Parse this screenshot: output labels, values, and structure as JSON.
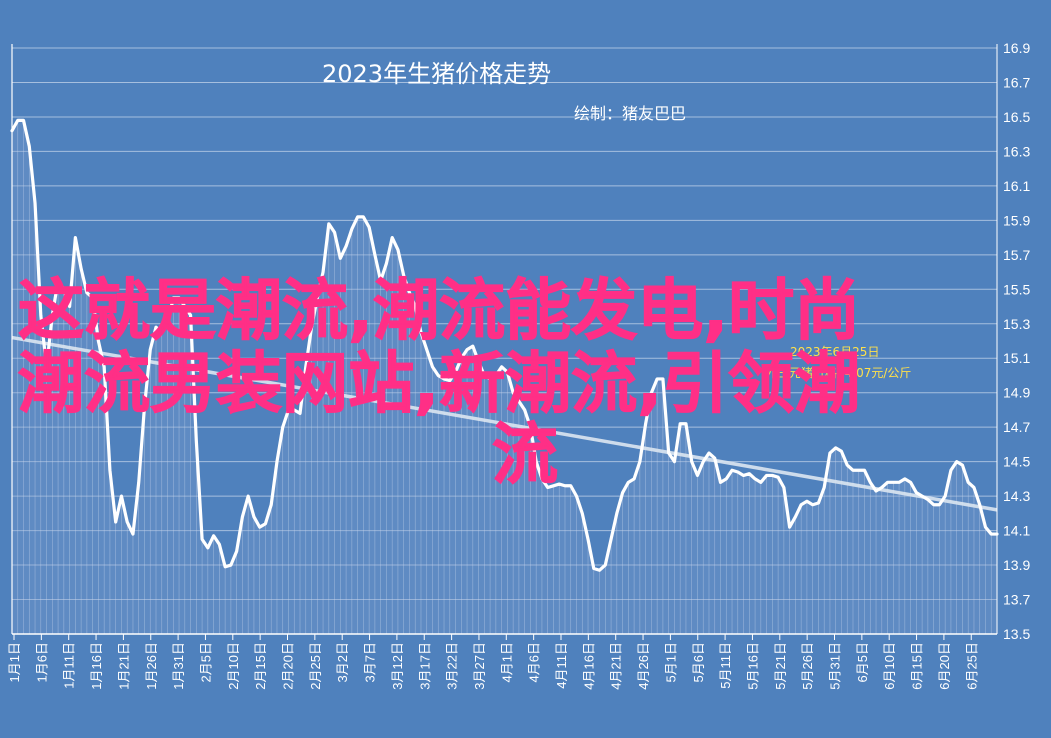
{
  "chart_data": {
    "type": "line",
    "title": "2023年生猪价格走势",
    "subtitle": "绘制：猪友巴巴",
    "ylim": [
      13.5,
      16.9
    ],
    "yticks": [
      "13.5",
      "13.7",
      "13.9",
      "14.1",
      "14.3",
      "14.5",
      "14.7",
      "14.9",
      "15.1",
      "15.3",
      "15.5",
      "15.7",
      "15.9",
      "16.1",
      "16.3",
      "16.5",
      "16.7",
      "16.9"
    ],
    "xticks": [
      "1月1日",
      "1月6日",
      "1月11日",
      "1月16日",
      "1月21日",
      "1月26日",
      "1月31日",
      "2月5日",
      "2月10日",
      "2月15日",
      "2月20日",
      "2月25日",
      "3月2日",
      "3月7日",
      "3月12日",
      "3月17日",
      "3月22日",
      "3月27日",
      "4月1日",
      "4月6日",
      "4月11日",
      "4月16日",
      "4月21日",
      "4月26日",
      "5月1日",
      "5月6日",
      "5月11日",
      "5月16日",
      "5月21日",
      "5月26日",
      "5月31日",
      "6月5日",
      "6月10日",
      "6月15日",
      "6月20日",
      "6月25日"
    ],
    "grid": true,
    "trendline": {
      "start": 15.22,
      "end": 14.22
    },
    "series": [
      {
        "values": [
          16.42,
          16.48,
          16.48,
          16.33,
          16.0,
          15.35,
          15.05,
          15.35,
          15.55,
          15.5,
          15.4,
          15.8,
          15.62,
          15.48,
          15.45,
          15.2,
          15.05,
          14.45,
          14.15,
          14.3,
          14.15,
          14.08,
          14.38,
          14.82,
          15.15,
          15.28,
          15.25,
          15.3,
          15.45,
          15.45,
          15.4,
          15.35,
          14.62,
          14.05,
          14.0,
          14.07,
          14.02,
          13.89,
          13.9,
          13.98,
          14.18,
          14.3,
          14.18,
          14.12,
          14.14,
          14.25,
          14.5,
          14.7,
          14.8,
          14.8,
          14.78,
          15.05,
          15.28,
          15.45,
          15.6,
          15.88,
          15.83,
          15.68,
          15.75,
          15.85,
          15.92,
          15.92,
          15.86,
          15.7,
          15.55,
          15.65,
          15.8,
          15.73,
          15.58,
          15.48,
          15.4,
          15.25,
          15.15,
          15.05,
          15.0,
          14.98,
          14.97,
          15.02,
          15.1,
          15.15,
          15.17,
          15.08,
          15.0,
          14.98,
          15.0,
          15.05,
          15.02,
          14.9,
          14.85,
          14.8,
          14.7,
          14.5,
          14.4,
          14.35,
          14.36,
          14.37,
          14.36,
          14.36,
          14.3,
          14.2,
          14.05,
          13.88,
          13.87,
          13.9,
          14.05,
          14.2,
          14.32,
          14.38,
          14.4,
          14.5,
          14.72,
          14.9,
          14.98,
          14.98,
          14.55,
          14.5,
          14.72,
          14.72,
          14.5,
          14.42,
          14.5,
          14.55,
          14.52,
          14.38,
          14.4,
          14.45,
          14.44,
          14.42,
          14.43,
          14.4,
          14.38,
          14.42,
          14.42,
          14.41,
          14.35,
          14.12,
          14.18,
          14.25,
          14.27,
          14.25,
          14.26,
          14.35,
          14.55,
          14.58,
          14.56,
          14.48,
          14.45,
          14.45,
          14.45,
          14.38,
          14.33,
          14.35,
          14.38,
          14.38,
          14.38,
          14.4,
          14.38,
          14.32,
          14.3,
          14.28,
          14.25,
          14.25,
          14.3,
          14.45,
          14.5,
          14.48,
          14.38,
          14.35,
          14.25,
          14.12,
          14.08,
          14.08
        ]
      }
    ]
  },
  "annotation": {
    "line1": "2023年6月25日",
    "line2": "外三元猪价格14.07元/公斤"
  },
  "overlay_text": {
    "line1": "这就是潮流,潮流能发电,时尚",
    "line2": "潮流男装网站,新潮流,引领潮",
    "line3": "流"
  },
  "colors": {
    "background": "#4f81bd",
    "line": "#ffffff",
    "trend": "#dbe5f1",
    "grid": "#a6bfdf",
    "annotation": "#ffe14a",
    "overlay": "#ff2f86"
  }
}
